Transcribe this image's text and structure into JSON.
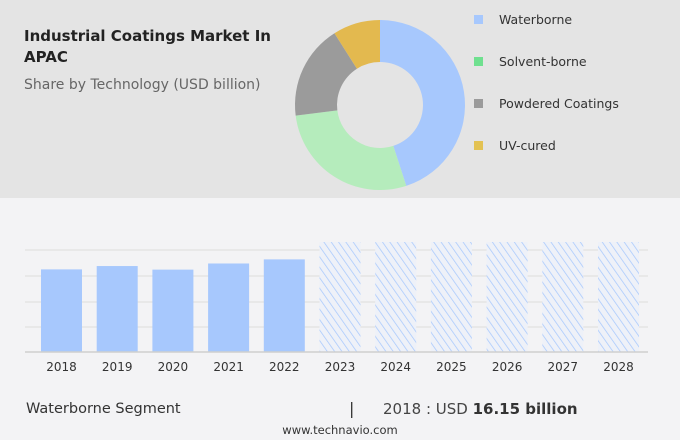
{
  "header": {
    "title": "Industrial Coatings Market In APAC",
    "subtitle": "Share by Technology (USD billion)"
  },
  "chart_data": [
    {
      "type": "pie",
      "title": "Industrial Coatings Market In APAC",
      "subtitle": "Share by Technology (USD billion)",
      "legend_position": "right",
      "labels": [
        "Waterborne",
        "Solvent-borne",
        "Powdered Coatings",
        "UV-cured"
      ],
      "values": [
        45,
        28,
        18,
        9
      ],
      "colors": [
        "#a7c8fd",
        "#b5ecbc",
        "#9b9b9b",
        "#e3b94f"
      ],
      "legend_colors": [
        "#a7c8fd",
        "#6fe08f",
        "#9b9b9b",
        "#e3c253"
      ]
    },
    {
      "type": "bar",
      "categories": [
        "2018",
        "2019",
        "2020",
        "2021",
        "2022",
        "2023",
        "2024",
        "2025",
        "2026",
        "2027",
        "2028"
      ],
      "values": [
        16.15,
        16.8,
        16.1,
        17.3,
        18.1,
        null,
        null,
        null,
        null,
        null,
        null
      ],
      "forecast": [
        false,
        false,
        false,
        false,
        false,
        true,
        true,
        true,
        true,
        true,
        true
      ],
      "color": "#a7c8fd",
      "ylim": [
        0,
        21.5
      ],
      "grid": true
    }
  ],
  "footer": {
    "segment": "Waterborne Segment",
    "separator": "|",
    "year_label": "2018 : USD ",
    "value": "16.15 billion",
    "website": "www.technavio.com"
  }
}
